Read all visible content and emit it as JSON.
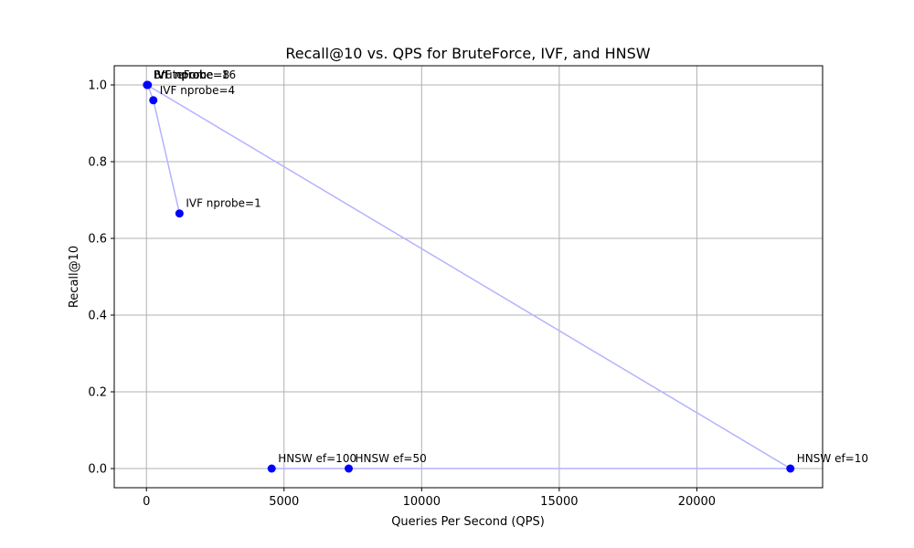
{
  "chart_data": {
    "type": "scatter",
    "title": "Recall@10 vs. QPS for BruteForce, IVF, and HNSW",
    "xlabel": "Queries Per Second (QPS)",
    "ylabel": "Recall@10",
    "xlim": [
      -1170,
      24570
    ],
    "ylim": [
      -0.05,
      1.05
    ],
    "xticks": [
      0,
      5000,
      10000,
      15000,
      20000
    ],
    "xtick_labels": [
      "0",
      "5000",
      "10000",
      "15000",
      "20000"
    ],
    "yticks": [
      0.0,
      0.2,
      0.4,
      0.6,
      0.8,
      1.0
    ],
    "ytick_labels": [
      "0.0",
      "0.2",
      "0.4",
      "0.6",
      "0.8",
      "1.0"
    ],
    "grid": true,
    "point_color": "#0000ff",
    "line_color": "#b3b3ff",
    "points": [
      {
        "label": "BruteForce",
        "x": 20,
        "y": 1.0
      },
      {
        "label": "IVF nprobe=16",
        "x": 30,
        "y": 1.0
      },
      {
        "label": "IVF nprobe=8",
        "x": 50,
        "y": 1.0
      },
      {
        "label": "IVF nprobe=4",
        "x": 250,
        "y": 0.96
      },
      {
        "label": "IVF nprobe=1",
        "x": 1200,
        "y": 0.665
      },
      {
        "label": "HNSW ef=100",
        "x": 4550,
        "y": 0.0
      },
      {
        "label": "HNSW ef=50",
        "x": 7350,
        "y": 0.0
      },
      {
        "label": "HNSW ef=10",
        "x": 23400,
        "y": 0.0
      }
    ],
    "line_order": [
      0,
      1,
      2,
      3,
      4,
      3,
      2,
      1,
      0,
      7,
      6,
      5
    ]
  }
}
